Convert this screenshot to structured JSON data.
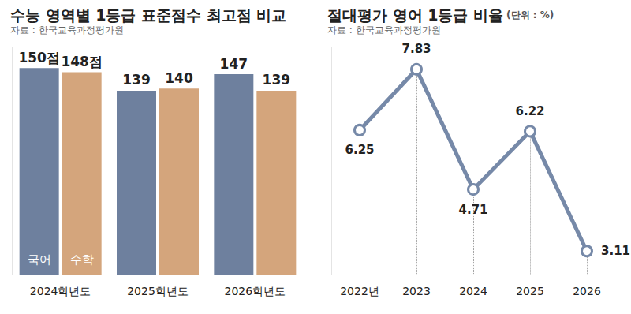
{
  "chart_data": [
    {
      "type": "bar",
      "title": "수능 영역별 1등급 표준점수 최고점 비교",
      "subtitle": "자료 : 한국교육과정평가원",
      "categories": [
        "2024학년도",
        "2025학년도",
        "2026학년도"
      ],
      "series": [
        {
          "name": "국어",
          "color": "#6e809e",
          "values": [
            150,
            139,
            147
          ],
          "value_labels": [
            "150점",
            "139",
            "147"
          ]
        },
        {
          "name": "수학",
          "color": "#d4a57c",
          "values": [
            148,
            140,
            139
          ],
          "value_labels": [
            "148점",
            "140",
            "139"
          ]
        }
      ],
      "ylim": [
        50,
        160
      ],
      "grid": false,
      "data_labels": true,
      "tick_labels": "x"
    },
    {
      "type": "line",
      "title": "절대평가 영어 1등급 비율",
      "annotation": "(단위 : %)",
      "subtitle": "자료 : 한국교육과정평가원",
      "categories": [
        "2022년",
        "2023",
        "2024",
        "2025",
        "2026"
      ],
      "values": [
        6.25,
        7.83,
        4.71,
        6.22,
        3.11
      ],
      "color": "#7689a8",
      "marker": "circle",
      "ylim": [
        2.5,
        8.4
      ],
      "grid": false,
      "data_labels": true,
      "tick_labels": "x"
    }
  ]
}
